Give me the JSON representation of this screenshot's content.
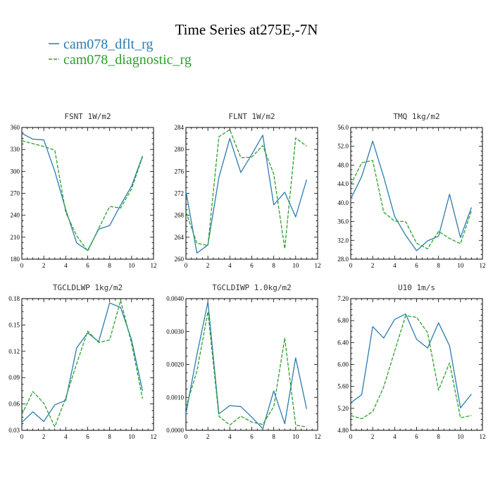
{
  "title": "Time Series at275E,-7N",
  "colors": {
    "dflt": "#2b7bb0",
    "diag": "#2ca02c",
    "axis": "#000000"
  },
  "legend": [
    {
      "name": "cam078_dflt_rg",
      "color": "#2b7bb0",
      "dashed": false
    },
    {
      "name": "cam078_diagnostic_rg",
      "color": "#2ca02c",
      "dashed": true
    }
  ],
  "chart_data": [
    {
      "type": "line",
      "title": "FSNT   1W/m2",
      "xlim": [
        0,
        12
      ],
      "ylim": [
        180,
        360
      ],
      "xticks": [
        0,
        2,
        4,
        6,
        8,
        10,
        12
      ],
      "yticks": [
        "180",
        "210",
        "240",
        "270",
        "300",
        "330",
        "360"
      ],
      "x": [
        0,
        1,
        2,
        3,
        4,
        5,
        6,
        7,
        8,
        9,
        10,
        11
      ],
      "series": [
        {
          "name": "cam078_dflt_rg",
          "values": [
            352,
            344,
            343,
            300,
            248,
            202,
            192,
            221,
            226,
            254,
            280,
            321
          ]
        },
        {
          "name": "cam078_diagnostic_rg",
          "values": [
            342,
            338,
            334,
            329,
            244,
            212,
            191,
            222,
            252,
            250,
            276,
            320
          ]
        }
      ]
    },
    {
      "type": "line",
      "title": "FLNT   1W/m2",
      "xlim": [
        0,
        12
      ],
      "ylim": [
        260,
        284
      ],
      "xticks": [
        0,
        2,
        4,
        6,
        8,
        10,
        12
      ],
      "yticks": [
        "260",
        "264",
        "268",
        "272",
        "276",
        "280",
        "284"
      ],
      "x": [
        0,
        1,
        2,
        3,
        4,
        5,
        6,
        7,
        8,
        9,
        10,
        11
      ],
      "series": [
        {
          "name": "cam078_dflt_rg",
          "values": [
            272.4,
            261.1,
            262.6,
            274.9,
            282.0,
            275.8,
            279.1,
            282.6,
            269.9,
            272.2,
            267.7,
            274.5
          ]
        },
        {
          "name": "cam078_diagnostic_rg",
          "values": [
            268.6,
            262.9,
            262.5,
            282.3,
            283.6,
            278.5,
            278.6,
            280.7,
            275.5,
            261.9,
            282.1,
            280.6
          ]
        }
      ]
    },
    {
      "type": "line",
      "title": "TMQ   1kg/m2",
      "xlim": [
        0,
        12
      ],
      "ylim": [
        28,
        56
      ],
      "xticks": [
        0,
        2,
        4,
        6,
        8,
        10,
        12
      ],
      "yticks": [
        "28.0",
        "32.0",
        "36.0",
        "40.0",
        "44.0",
        "48.0",
        "52.0",
        "56.0"
      ],
      "x": [
        0,
        1,
        2,
        3,
        4,
        5,
        6,
        7,
        8,
        9,
        10,
        11
      ],
      "series": [
        {
          "name": "cam078_dflt_rg",
          "values": [
            40.8,
            45.6,
            53.1,
            45.5,
            37.1,
            33.1,
            29.8,
            31.9,
            32.9,
            41.8,
            32.6,
            39.0
          ]
        },
        {
          "name": "cam078_diagnostic_rg",
          "values": [
            43.8,
            48.5,
            49.0,
            38.0,
            36.1,
            36.0,
            31.4,
            30.2,
            33.9,
            32.4,
            31.3,
            38.3
          ]
        }
      ]
    },
    {
      "type": "line",
      "title": "TGCLDLWP   1kg/m2",
      "xlim": [
        0,
        12
      ],
      "ylim": [
        0.03,
        0.18
      ],
      "xticks": [
        0,
        2,
        4,
        6,
        8,
        10,
        12
      ],
      "yticks": [
        "0.03",
        "0.06",
        "0.09",
        "0.12",
        "0.15",
        "0.18"
      ],
      "x": [
        0,
        1,
        2,
        3,
        4,
        5,
        6,
        7,
        8,
        9,
        10,
        11
      ],
      "series": [
        {
          "name": "cam078_dflt_rg",
          "values": [
            0.039,
            0.051,
            0.04,
            0.059,
            0.064,
            0.124,
            0.141,
            0.131,
            0.175,
            0.17,
            0.133,
            0.075
          ]
        },
        {
          "name": "cam078_diagnostic_rg",
          "values": [
            0.048,
            0.074,
            0.061,
            0.034,
            0.067,
            0.106,
            0.143,
            0.13,
            0.133,
            0.178,
            0.129,
            0.066
          ]
        }
      ]
    },
    {
      "type": "line",
      "title": "TGCLDIWP   1.0kg/m2",
      "xlim": [
        0,
        12
      ],
      "ylim": [
        0,
        0.004
      ],
      "xticks": [
        0,
        2,
        4,
        6,
        8,
        10,
        12
      ],
      "yticks": [
        "0.0000",
        "0.0010",
        "0.0020",
        "0.0030",
        "0.0040"
      ],
      "x": [
        0,
        1,
        2,
        3,
        4,
        5,
        6,
        7,
        8,
        9,
        10,
        11
      ],
      "series": [
        {
          "name": "cam078_dflt_rg",
          "values": [
            0.0005,
            0.0023,
            0.0039,
            0.0005,
            0.00075,
            0.00072,
            0.0004,
            5e-05,
            0.0012,
            0.0002,
            0.0022,
            0.00065
          ]
        },
        {
          "name": "cam078_diagnostic_rg",
          "values": [
            0.0007,
            0.0018,
            0.0036,
            0.00043,
            0.00016,
            0.00043,
            0.00025,
            0.00018,
            0.00072,
            0.0028,
            0.00016,
            0.0001
          ]
        }
      ]
    },
    {
      "type": "line",
      "title": "U10   1m/s",
      "xlim": [
        0,
        12
      ],
      "ylim": [
        4.8,
        7.2
      ],
      "xticks": [
        0,
        2,
        4,
        6,
        8,
        10,
        12
      ],
      "yticks": [
        "4.80",
        "5.20",
        "5.60",
        "6.00",
        "6.40",
        "6.80",
        "7.20"
      ],
      "x": [
        0,
        1,
        2,
        3,
        4,
        5,
        6,
        7,
        8,
        9,
        10,
        11
      ],
      "series": [
        {
          "name": "cam078_dflt_rg",
          "values": [
            5.3,
            5.45,
            6.69,
            6.48,
            6.82,
            6.92,
            6.46,
            6.3,
            6.76,
            6.34,
            5.21,
            5.46
          ]
        },
        {
          "name": "cam078_diagnostic_rg",
          "values": [
            5.07,
            5.01,
            5.14,
            5.59,
            6.24,
            6.89,
            6.86,
            6.58,
            5.53,
            6.03,
            5.03,
            5.07
          ]
        }
      ]
    }
  ]
}
